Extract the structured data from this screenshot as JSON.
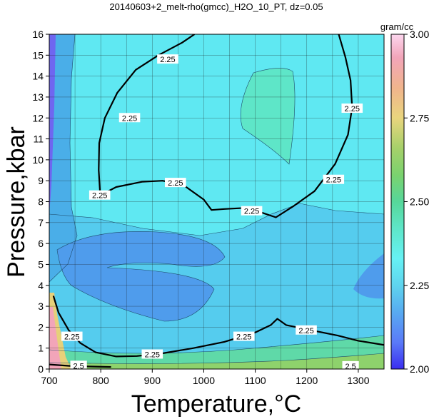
{
  "chart_data": {
    "type": "heatmap",
    "title": "20140603+2_melt-rho(gmcc)_H2O_10_PT, dz=0.05",
    "xlabel": "Temperature,°C",
    "ylabel": "Pressure,kbar",
    "xlim": [
      700,
      1350
    ],
    "ylim": [
      0,
      16
    ],
    "x_ticks": [
      "700",
      "800",
      "900",
      "1000",
      "1100",
      "1200",
      "1300"
    ],
    "y_ticks": [
      "0",
      "1",
      "2",
      "3",
      "4",
      "5",
      "6",
      "7",
      "8",
      "9",
      "10",
      "11",
      "12",
      "13",
      "14",
      "15",
      "16"
    ],
    "grid": true,
    "contour_interval": 0.05,
    "colorbar": {
      "unit": "gram/cc",
      "range": [
        2.0,
        3.0
      ],
      "tick_labels": [
        "2.00",
        "2.25",
        "2.50",
        "2.75",
        "3.00"
      ],
      "tick_values": [
        2.0,
        2.25,
        2.5,
        2.75,
        3.0
      ],
      "position": "right"
    },
    "bold_contours": [
      {
        "level": "2.25",
        "points": [
          [
            799,
            8.3
          ],
          [
            796,
            9.5
          ],
          [
            797,
            10.8
          ],
          [
            808,
            12.0
          ],
          [
            832,
            13.2
          ],
          [
            868,
            14.3
          ],
          [
            912,
            15.0
          ],
          [
            958,
            15.6
          ],
          [
            982,
            16.0
          ]
        ],
        "labels": [
          {
            "x": 856,
            "y": 12.0
          },
          {
            "x": 930,
            "y": 14.8
          }
        ]
      },
      {
        "level": "2.25",
        "points": [
          [
            799,
            8.3
          ],
          [
            830,
            8.7
          ],
          [
            880,
            8.95
          ],
          [
            920,
            9.0
          ],
          [
            960,
            8.8
          ],
          [
            1000,
            8.1
          ],
          [
            1015,
            7.6
          ],
          [
            1040,
            7.65
          ],
          [
            1080,
            7.7
          ],
          [
            1110,
            7.5
          ],
          [
            1140,
            7.25
          ],
          [
            1175,
            7.8
          ],
          [
            1215,
            8.5
          ],
          [
            1255,
            9.8
          ],
          [
            1280,
            11.2
          ],
          [
            1288,
            12.5
          ],
          [
            1285,
            13.8
          ],
          [
            1275,
            14.9
          ],
          [
            1262,
            16.0
          ]
        ],
        "labels": [
          {
            "x": 798,
            "y": 8.3
          },
          {
            "x": 945,
            "y": 8.9
          },
          {
            "x": 1093,
            "y": 7.55
          },
          {
            "x": 1252,
            "y": 9.05
          },
          {
            "x": 1288,
            "y": 12.45
          }
        ]
      },
      {
        "level": "2.25",
        "points": [
          [
            708,
            3.5
          ],
          [
            718,
            2.7
          ],
          [
            738,
            1.85
          ],
          [
            760,
            1.25
          ],
          [
            790,
            0.8
          ],
          [
            830,
            0.6
          ],
          [
            870,
            0.62
          ],
          [
            920,
            0.75
          ],
          [
            980,
            1.0
          ],
          [
            1040,
            1.3
          ],
          [
            1100,
            1.75
          ],
          [
            1130,
            2.1
          ],
          [
            1143,
            2.4
          ],
          [
            1160,
            2.1
          ],
          [
            1210,
            1.85
          ],
          [
            1260,
            1.6
          ],
          [
            1300,
            1.35
          ],
          [
            1350,
            1.15
          ]
        ],
        "labels": [
          {
            "x": 744,
            "y": 1.55
          },
          {
            "x": 1078,
            "y": 1.55
          },
          {
            "x": 1199,
            "y": 1.85
          },
          {
            "x": 900,
            "y": 0.7
          }
        ]
      },
      {
        "level": "2.5",
        "points": [
          [
            700,
            0.22
          ],
          [
            740,
            0.15
          ],
          [
            780,
            0.12
          ],
          [
            820,
            0.1
          ]
        ],
        "labels": [
          {
            "x": 757,
            "y": 0.16
          },
          {
            "x": 1285,
            "y": 0.14
          }
        ]
      }
    ]
  }
}
